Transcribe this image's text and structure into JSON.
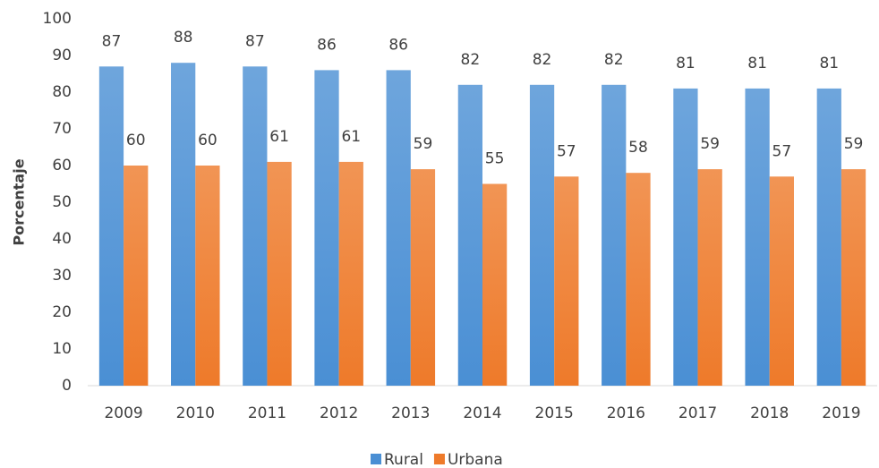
{
  "chart_data": {
    "type": "bar",
    "y_label": "Porcentaje",
    "categories": [
      "2009",
      "2010",
      "2011",
      "2012",
      "2013",
      "2014",
      "2015",
      "2016",
      "2017",
      "2018",
      "2019"
    ],
    "series": [
      {
        "name": "Rural",
        "color": "#4a8fd4",
        "values": [
          87,
          88,
          87,
          86,
          86,
          82,
          82,
          82,
          81,
          81,
          81
        ]
      },
      {
        "name": "Urbana",
        "color": "#ee7a2a",
        "values": [
          60,
          60,
          61,
          61,
          59,
          55,
          57,
          58,
          59,
          57,
          59
        ]
      }
    ],
    "ylim": [
      0,
      100
    ],
    "yticks": [
      0,
      10,
      20,
      30,
      40,
      50,
      60,
      70,
      80,
      90,
      100
    ],
    "grid": false,
    "legend": "bottom"
  }
}
